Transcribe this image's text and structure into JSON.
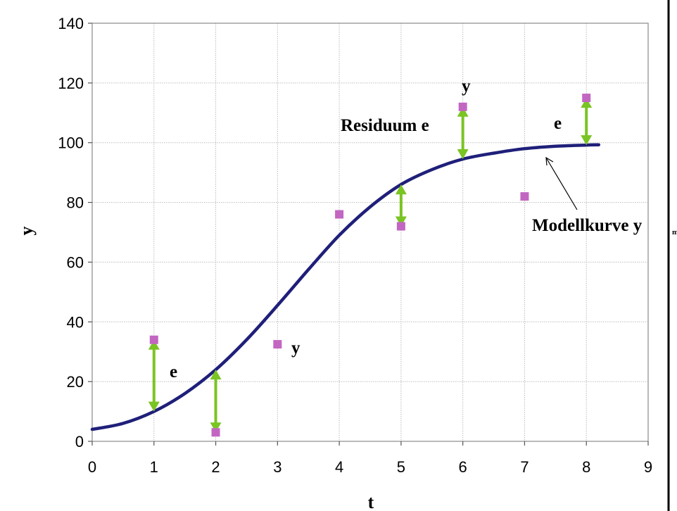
{
  "chart_data": {
    "type": "scatter",
    "xlabel": "t",
    "ylabel": "y",
    "xlim": [
      0,
      9
    ],
    "ylim": [
      0,
      140
    ],
    "xticks": [
      0,
      1,
      2,
      3,
      4,
      5,
      6,
      7,
      8,
      9
    ],
    "yticks": [
      0,
      20,
      40,
      60,
      80,
      100,
      120,
      140
    ],
    "grid": true,
    "series": [
      {
        "kind": "points",
        "x": [
          1,
          2,
          3,
          4,
          5,
          6,
          7,
          8
        ],
        "y": [
          34,
          3,
          32.5,
          76,
          72,
          112,
          82,
          115
        ],
        "color": "#c266c2"
      },
      {
        "kind": "line",
        "x": [
          0,
          0.5,
          1,
          1.5,
          2,
          2.5,
          3,
          3.5,
          4,
          4.5,
          5,
          5.5,
          6,
          6.5,
          7,
          7.5,
          8,
          8.2
        ],
        "y": [
          4,
          6,
          10,
          16,
          24,
          34,
          45.5,
          57.5,
          69,
          78.5,
          86,
          91,
          94.5,
          96.5,
          98,
          98.8,
          99.2,
          99.3
        ],
        "color": "#1f1f7a"
      }
    ],
    "residuals": [
      {
        "x": 1,
        "from": 10,
        "to": 34
      },
      {
        "x": 2,
        "from": 3,
        "to": 24
      },
      {
        "x": 5,
        "from": 72,
        "to": 86
      },
      {
        "x": 6,
        "from": 94.5,
        "to": 112
      },
      {
        "x": 8,
        "from": 99.2,
        "to": 115
      }
    ],
    "residual_color": "#7ac423",
    "annotations": [
      {
        "text": "e"
      },
      {
        "text": "y"
      },
      {
        "text": "Residuum e"
      },
      {
        "text": "y"
      },
      {
        "text": "e"
      },
      {
        "text": "Modellkurve y",
        "sub": "m"
      }
    ]
  }
}
